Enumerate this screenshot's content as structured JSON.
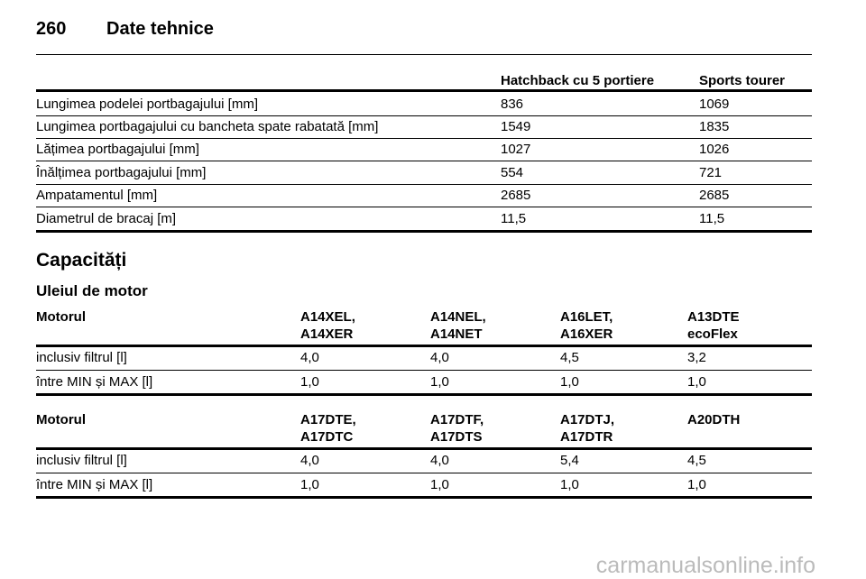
{
  "header": {
    "page": "260",
    "title": "Date tehnice"
  },
  "dimensions_table": {
    "columns": [
      "Hatchback cu 5 portiere",
      "Sports tourer"
    ],
    "rows": [
      [
        "Lungimea podelei portbagajului [mm]",
        "836",
        "1069"
      ],
      [
        "Lungimea portbagajului cu bancheta spate rabatată [mm]",
        "1549",
        "1835"
      ],
      [
        "Lățimea portbagajului [mm]",
        "1027",
        "1026"
      ],
      [
        "Înălțimea portbagajului [mm]",
        "554",
        "721"
      ],
      [
        "Ampatamentul [mm]",
        "2685",
        "2685"
      ],
      [
        "Diametrul de bracaj [m]",
        "11,5",
        "11,5"
      ]
    ]
  },
  "section_title": "Capacități",
  "subsection_title": "Uleiul de motor",
  "oil_tables": [
    {
      "header_label": "Motorul",
      "columns": [
        [
          "A14XEL,",
          "A14XER"
        ],
        [
          "A14NEL,",
          "A14NET"
        ],
        [
          "A16LET,",
          "A16XER"
        ],
        [
          "A13DTE",
          "ecoFlex"
        ]
      ],
      "rows": [
        [
          "inclusiv filtrul [l]",
          "4,0",
          "4,0",
          "4,5",
          "3,2"
        ],
        [
          "între MIN și MAX [l]",
          "1,0",
          "1,0",
          "1,0",
          "1,0"
        ]
      ]
    },
    {
      "header_label": "Motorul",
      "columns": [
        [
          "A17DTE,",
          "A17DTC"
        ],
        [
          "A17DTF,",
          "A17DTS"
        ],
        [
          "A17DTJ,",
          "A17DTR"
        ],
        [
          "A20DTH"
        ]
      ],
      "rows": [
        [
          "inclusiv filtrul [l]",
          "4,0",
          "4,0",
          "5,4",
          "4,5"
        ],
        [
          "între MIN și MAX [l]",
          "1,0",
          "1,0",
          "1,0",
          "1,0"
        ]
      ]
    }
  ],
  "watermark": "carmanualsonline.info"
}
